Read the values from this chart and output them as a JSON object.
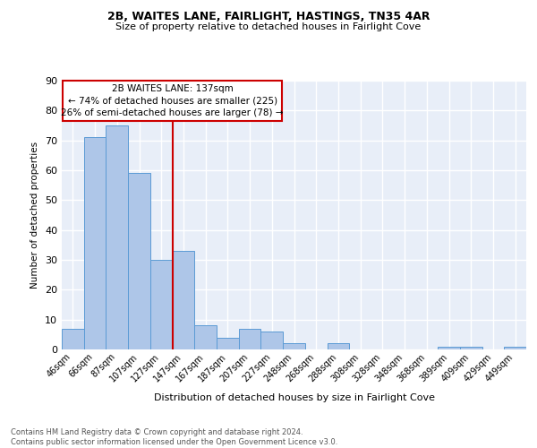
{
  "title1": "2B, WAITES LANE, FAIRLIGHT, HASTINGS, TN35 4AR",
  "title2": "Size of property relative to detached houses in Fairlight Cove",
  "xlabel": "Distribution of detached houses by size in Fairlight Cove",
  "ylabel": "Number of detached properties",
  "bar_labels": [
    "46sqm",
    "66sqm",
    "87sqm",
    "107sqm",
    "127sqm",
    "147sqm",
    "167sqm",
    "187sqm",
    "207sqm",
    "227sqm",
    "248sqm",
    "268sqm",
    "288sqm",
    "308sqm",
    "328sqm",
    "348sqm",
    "368sqm",
    "389sqm",
    "409sqm",
    "429sqm",
    "449sqm"
  ],
  "bar_values": [
    7,
    71,
    75,
    59,
    30,
    33,
    8,
    4,
    7,
    6,
    2,
    0,
    2,
    0,
    0,
    0,
    0,
    1,
    1,
    0,
    1
  ],
  "bar_color": "#aec6e8",
  "bar_edge_color": "#5b9bd5",
  "background_color": "#e8eef8",
  "grid_color": "#ffffff",
  "annotation_line_color": "#cc0000",
  "annotation_box_text": "2B WAITES LANE: 137sqm\n← 74% of detached houses are smaller (225)\n26% of semi-detached houses are larger (78) →",
  "annotation_box_color": "#cc0000",
  "ylim": [
    0,
    90
  ],
  "yticks": [
    0,
    10,
    20,
    30,
    40,
    50,
    60,
    70,
    80,
    90
  ],
  "footnote": "Contains HM Land Registry data © Crown copyright and database right 2024.\nContains public sector information licensed under the Open Government Licence v3.0.",
  "bin_centers": [
    0,
    1,
    2,
    3,
    4,
    5,
    6,
    7,
    8,
    9,
    10,
    11,
    12,
    13,
    14,
    15,
    16,
    17,
    18,
    19,
    20
  ]
}
